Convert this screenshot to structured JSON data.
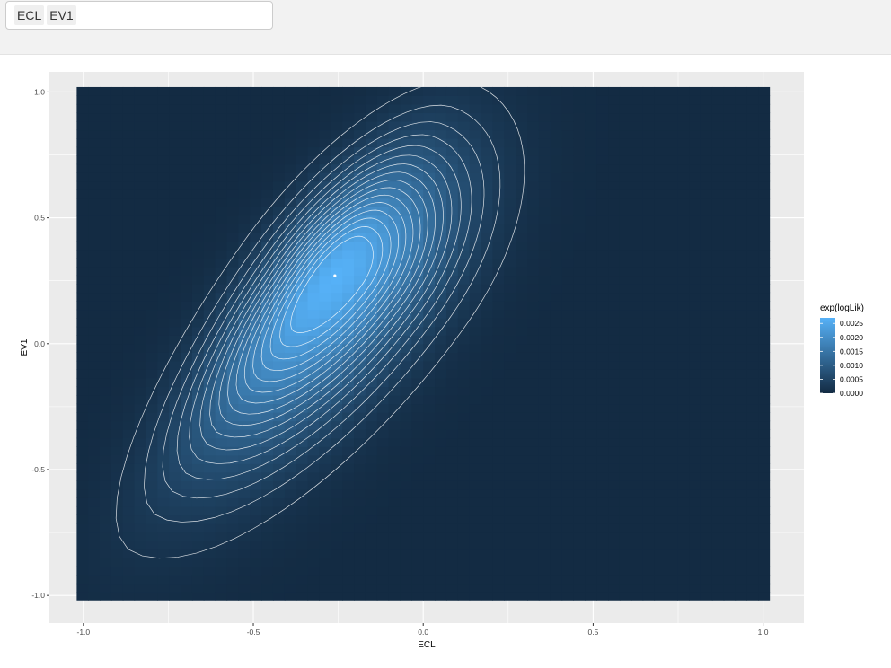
{
  "selector": {
    "chips": [
      "ECL",
      "EV1"
    ]
  },
  "chart_data": {
    "type": "heatmap",
    "title": "",
    "xlabel": "ECL",
    "ylabel": "EV1",
    "xlim": [
      -1.1,
      1.12
    ],
    "ylim": [
      -1.11,
      1.08
    ],
    "x_ticks": [
      {
        "value": -1.0,
        "label": "-1.0"
      },
      {
        "value": -0.5,
        "label": "-0.5"
      },
      {
        "value": 0.0,
        "label": "0.0"
      },
      {
        "value": 0.5,
        "label": "0.5"
      },
      {
        "value": 1.0,
        "label": "1.0"
      }
    ],
    "y_ticks": [
      {
        "value": -1.0,
        "label": "-1.0"
      },
      {
        "value": -0.5,
        "label": "-0.5"
      },
      {
        "value": 0.0,
        "label": "0.0"
      },
      {
        "value": 0.5,
        "label": "0.5"
      },
      {
        "value": 1.0,
        "label": "1.0"
      }
    ],
    "fill_extent": {
      "x": [
        -1.02,
        1.02
      ],
      "y": [
        -1.02,
        1.02
      ]
    },
    "fill_variable": "exp(logLik)",
    "fill_range": [
      0.0,
      0.0027
    ],
    "color_low": "#132B43",
    "color_high": "#56B1F7",
    "contour_color": "#ffffff",
    "peak": {
      "x": -0.26,
      "y": 0.27,
      "value": 0.0027
    },
    "legend": {
      "title": "exp(logLik)",
      "position": "right",
      "breaks": [
        {
          "value": 0.0025,
          "label": "0.0025"
        },
        {
          "value": 0.002,
          "label": "0.0020"
        },
        {
          "value": 0.0015,
          "label": "0.0015"
        },
        {
          "value": 0.001,
          "label": "0.0010"
        },
        {
          "value": 0.0005,
          "label": "0.0005"
        },
        {
          "value": 0.0,
          "label": "0.0000"
        }
      ]
    },
    "grid": true,
    "panel_background": "#EBEBEB"
  }
}
